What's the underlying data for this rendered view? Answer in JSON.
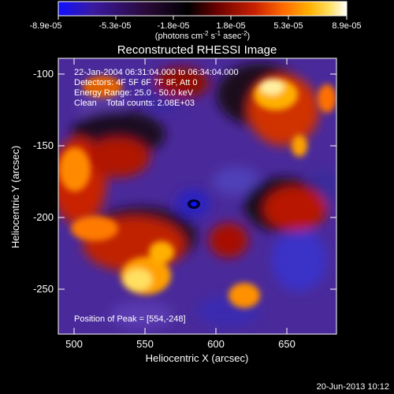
{
  "colorbar": {
    "tick_labels": [
      "-8.9e-05",
      "-5.3e-05",
      "-1.8e-05",
      "1.8e-05",
      "5.3e-05",
      "8.9e-05"
    ],
    "units_prefix": "(photons cm",
    "units_exp1": "-2",
    "units_mid": " s",
    "units_exp2": "-1",
    "units_suffix": " asec",
    "units_exp3": "-2",
    "units_close": ")",
    "gradient_colors": [
      "#1010ff",
      "#3a1aa0",
      "#2a0a3a",
      "#000000",
      "#6a0000",
      "#c82000",
      "#ff6a00",
      "#ffb000",
      "#ffe060",
      "#ffffff"
    ]
  },
  "plot": {
    "title": "Reconstructed RHESSI Image",
    "xlabel": "Heliocentric X (arcsec)",
    "ylabel": "Heliocentric Y (arcsec)",
    "xticks": [
      "500",
      "550",
      "600",
      "650"
    ],
    "yticks": [
      "-100",
      "-150",
      "-200",
      "-250"
    ],
    "info_lines": [
      "22-Jan-2004 06:31:04.000 to 06:34:04.000",
      "Detectors: 4F 5F 6F 7F 8F, Att 0",
      "Energy Range: 25.0 - 50.0 keV",
      "Clean    Total counts: 2.08E+03"
    ],
    "peak_text": "Position of Peak = [554,-248]"
  },
  "footer": {
    "date": "20-Jun-2013 10:12"
  }
}
